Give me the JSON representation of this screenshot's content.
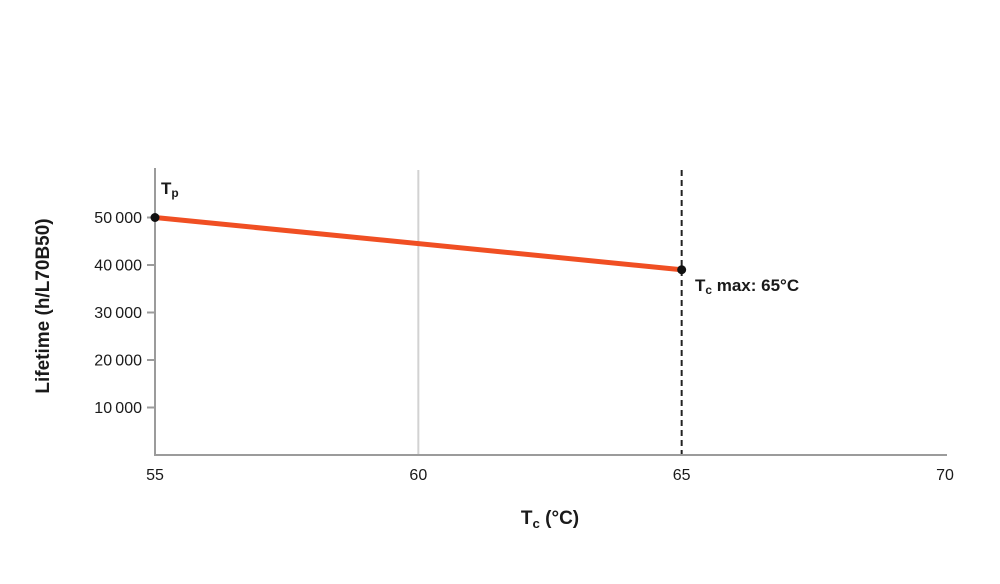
{
  "chart_data": {
    "type": "line",
    "ylabel": "Lifetime (h/L70B50)",
    "xlabel_main": "T",
    "xlabel_sub": "c",
    "xlabel_rest": " (°C)",
    "xlim": [
      55,
      70
    ],
    "ylim": [
      0,
      60000
    ],
    "x_ticks": [
      {
        "value": 55,
        "label": "55"
      },
      {
        "value": 60,
        "label": "60"
      },
      {
        "value": 65,
        "label": "65"
      },
      {
        "value": 70,
        "label": "70"
      }
    ],
    "y_ticks": [
      {
        "value": 10000,
        "label": "10 000"
      },
      {
        "value": 20000,
        "label": "20 000"
      },
      {
        "value": 30000,
        "label": "30 000"
      },
      {
        "value": 40000,
        "label": "40 000"
      },
      {
        "value": 50000,
        "label": "50 000"
      }
    ],
    "gridlines": {
      "vertical_x": [
        60
      ],
      "color": "#d2d2d2"
    },
    "dashed_line_x": 65,
    "series": [
      {
        "name": "lifetime",
        "x": [
          55,
          65
        ],
        "values": [
          50000,
          39000
        ],
        "color": "#f04f23",
        "width": 5
      }
    ],
    "points": [
      {
        "x": 55,
        "y": 50000
      },
      {
        "x": 65,
        "y": 39000
      }
    ],
    "annotations": {
      "start": {
        "main": "T",
        "sub": "p"
      },
      "end": {
        "main": "T",
        "sub": "c",
        "rest": " max: 65°C"
      }
    },
    "colors": {
      "axis": "#9b9b9b",
      "text": "#1a1a1a",
      "dashed": "#222222",
      "point": "#111111",
      "background": "#ffffff"
    }
  }
}
